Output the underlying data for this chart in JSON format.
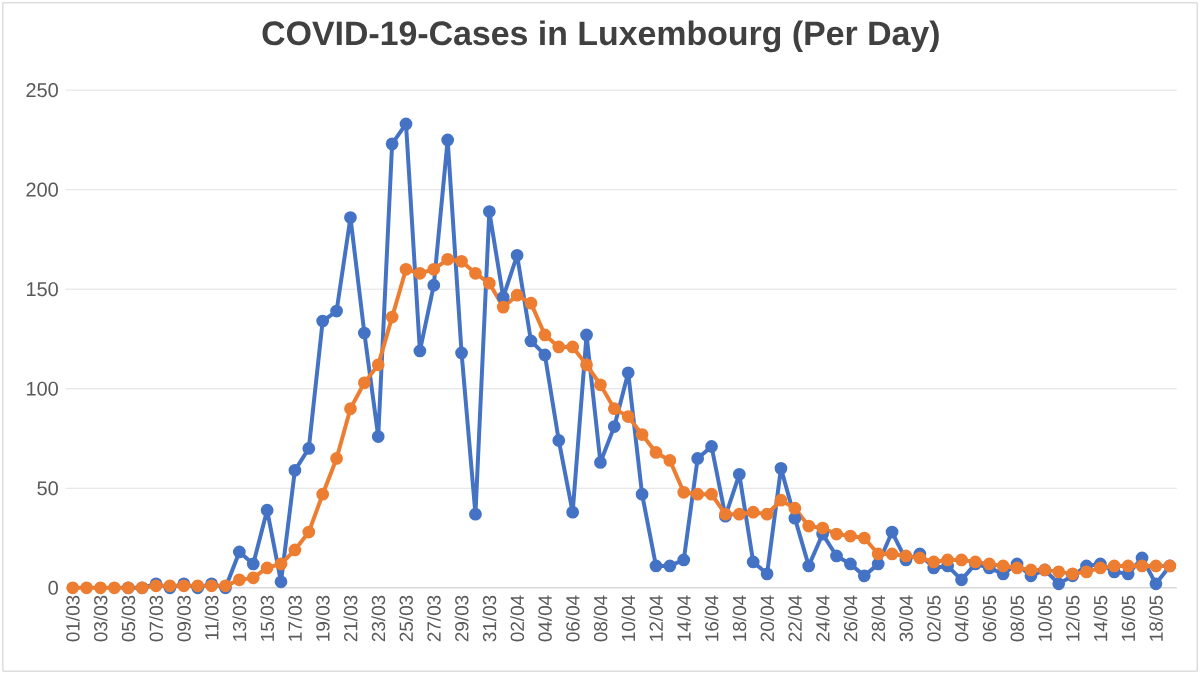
{
  "chart_data": {
    "type": "line",
    "title": "COVID-19-Cases in Luxembourg (Per Day)",
    "categories": [
      "01/03",
      null,
      "03/03",
      null,
      "05/03",
      null,
      "07/03",
      null,
      "09/03",
      null,
      "11/03",
      null,
      "13/03",
      null,
      "15/03",
      null,
      "17/03",
      null,
      "19/03",
      null,
      "21/03",
      null,
      "23/03",
      null,
      "25/03",
      null,
      "27/03",
      null,
      "29/03",
      null,
      "31/03",
      null,
      "02/04",
      null,
      "04/04",
      null,
      "06/04",
      null,
      "08/04",
      null,
      "10/04",
      null,
      "12/04",
      null,
      "14/04",
      null,
      "16/04",
      null,
      "18/04",
      null,
      "20/04",
      null,
      "22/04",
      null,
      "24/04",
      null,
      "26/04",
      null,
      "28/04",
      null,
      "30/04",
      null,
      "02/05",
      null,
      "04/05",
      null,
      "06/05",
      null,
      "08/05",
      null,
      "10/05",
      null,
      "12/05",
      null,
      "14/05",
      null,
      "16/05",
      null,
      "18/05",
      null
    ],
    "series": [
      {
        "color": "#4472c4",
        "values": [
          null,
          null,
          null,
          null,
          0,
          0,
          2,
          0,
          2,
          0,
          2,
          0,
          18,
          12,
          39,
          3,
          59,
          70,
          134,
          139,
          186,
          128,
          76,
          223,
          233,
          119,
          152,
          225,
          118,
          37,
          189,
          146,
          167,
          124,
          117,
          74,
          38,
          127,
          63,
          81,
          108,
          47,
          11,
          11,
          14,
          65,
          71,
          36,
          57,
          13,
          7,
          60,
          35,
          11,
          27,
          16,
          12,
          6,
          12,
          28,
          14,
          17,
          10,
          11,
          4,
          12,
          10,
          7,
          12,
          6,
          9,
          2,
          6,
          11,
          12,
          8,
          7,
          15,
          2,
          11
        ]
      },
      {
        "color": "#ed7d31",
        "values": [
          0,
          0,
          0,
          0,
          0,
          0,
          1,
          1,
          1,
          1,
          1,
          1,
          4,
          5,
          10,
          12,
          19,
          28,
          47,
          65,
          90,
          103,
          112,
          136,
          160,
          158,
          160,
          165,
          164,
          158,
          153,
          141,
          147,
          143,
          127,
          121,
          121,
          112,
          102,
          90,
          86,
          77,
          68,
          64,
          48,
          47,
          47,
          37,
          37,
          38,
          37,
          44,
          40,
          31,
          30,
          27,
          26,
          25,
          17,
          17,
          16,
          15,
          13,
          14,
          14,
          13,
          12,
          11,
          10,
          9,
          9,
          8,
          7,
          8,
          10,
          11,
          11,
          11,
          11,
          11
        ]
      }
    ],
    "ylim": [
      0,
      250
    ],
    "yticks": [
      0,
      50,
      100,
      150,
      200,
      250
    ],
    "grid": "y",
    "marker": "circle",
    "line_style": "solid"
  }
}
